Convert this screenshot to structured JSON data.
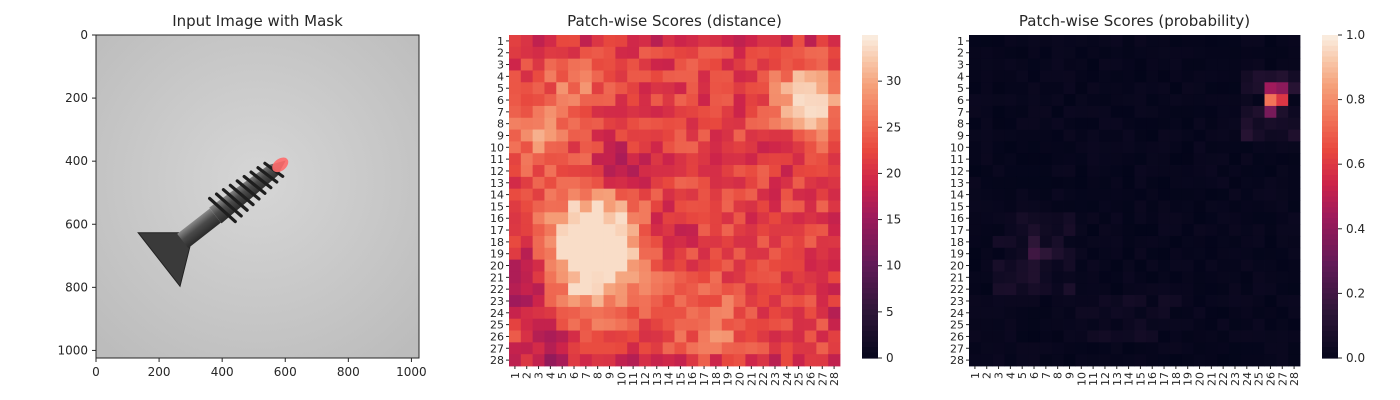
{
  "chart_data": [
    {
      "type": "image",
      "title": "Input Image with Mask",
      "xlim": [
        0,
        1024
      ],
      "ylim": [
        1024,
        0
      ],
      "xticks": [
        0,
        200,
        400,
        600,
        800,
        1000
      ],
      "yticks": [
        0,
        200,
        400,
        600,
        800,
        1000
      ],
      "image_description_for_render": "grayscale screw with red mask at tip",
      "mask_color": "#ff6b6b",
      "mask_region_xy": [
        [
          875,
          205
        ],
        [
          905,
          225
        ]
      ]
    },
    {
      "type": "heatmap",
      "title": "Patch-wise Scores (distance)",
      "rows": [
        "1",
        "2",
        "3",
        "4",
        "5",
        "6",
        "7",
        "8",
        "9",
        "10",
        "11",
        "12",
        "13",
        "14",
        "15",
        "16",
        "17",
        "18",
        "19",
        "20",
        "21",
        "22",
        "23",
        "24",
        "25",
        "26",
        "27",
        "28"
      ],
      "cols": [
        "1",
        "2",
        "3",
        "4",
        "5",
        "6",
        "7",
        "8",
        "9",
        "10",
        "11",
        "12",
        "13",
        "14",
        "15",
        "16",
        "17",
        "18",
        "19",
        "20",
        "21",
        "22",
        "23",
        "24",
        "25",
        "26",
        "27",
        "28"
      ],
      "colorbar": {
        "min": 0,
        "max": 35,
        "ticks": [
          0,
          5,
          10,
          15,
          20,
          25,
          30
        ]
      },
      "colormap": "rocket"
    },
    {
      "type": "heatmap",
      "title": "Patch-wise Scores (probability)",
      "rows": [
        "1",
        "2",
        "3",
        "4",
        "5",
        "6",
        "7",
        "8",
        "9",
        "10",
        "11",
        "12",
        "13",
        "14",
        "15",
        "16",
        "17",
        "18",
        "19",
        "20",
        "21",
        "22",
        "23",
        "24",
        "25",
        "26",
        "27",
        "28"
      ],
      "cols": [
        "1",
        "2",
        "3",
        "4",
        "5",
        "6",
        "7",
        "8",
        "9",
        "10",
        "11",
        "12",
        "13",
        "14",
        "15",
        "16",
        "17",
        "18",
        "19",
        "20",
        "21",
        "22",
        "23",
        "24",
        "25",
        "26",
        "27",
        "28"
      ],
      "colorbar": {
        "min": 0.0,
        "max": 1.0,
        "ticks": [
          "0.0",
          "0.2",
          "0.4",
          "0.6",
          "0.8",
          "1.0"
        ]
      },
      "colormap": "rocket",
      "hot_cells": [
        {
          "row": 5,
          "col": 26,
          "value": 0.45
        },
        {
          "row": 5,
          "col": 27,
          "value": 0.4
        },
        {
          "row": 6,
          "col": 26,
          "value": 0.75
        },
        {
          "row": 6,
          "col": 27,
          "value": 0.6
        },
        {
          "row": 7,
          "col": 26,
          "value": 0.35
        },
        {
          "row": 19,
          "col": 6,
          "value": 0.2
        },
        {
          "row": 18,
          "col": 6,
          "value": 0.15
        },
        {
          "row": 19,
          "col": 7,
          "value": 0.15
        }
      ]
    }
  ]
}
